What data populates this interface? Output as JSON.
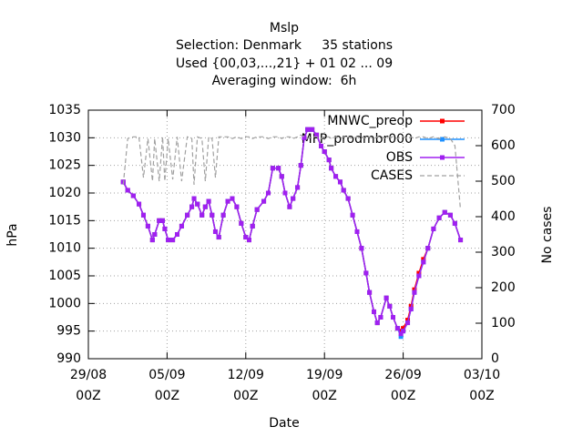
{
  "chart_data": {
    "type": "line",
    "title": "Mslp",
    "subtitle": [
      "Selection: Denmark     35 stations",
      "Used {00,03,...,21} + 01 02 ... 09",
      "Averaging window:  6h"
    ],
    "x_label": "Date",
    "y_label": "hPa",
    "y2_label": "No cases",
    "xlim": [
      0,
      35
    ],
    "xticks": [
      {
        "value": 0,
        "label": "29/08",
        "sublabel": "00Z"
      },
      {
        "value": 7,
        "label": "05/09",
        "sublabel": "00Z"
      },
      {
        "value": 14,
        "label": "12/09",
        "sublabel": "00Z"
      },
      {
        "value": 21,
        "label": "19/09",
        "sublabel": "00Z"
      },
      {
        "value": 28,
        "label": "26/09",
        "sublabel": "00Z"
      },
      {
        "value": 35,
        "label": "03/10",
        "sublabel": "00Z"
      }
    ],
    "ylim": [
      990,
      1035
    ],
    "yticks": [
      990,
      995,
      1000,
      1005,
      1010,
      1015,
      1020,
      1025,
      1030,
      1035
    ],
    "y2lim": [
      0,
      700
    ],
    "y2ticks": [
      0,
      100,
      200,
      300,
      400,
      500,
      600,
      700
    ],
    "grid": true,
    "legend": "top-right",
    "x": [
      3.1,
      3.5,
      4.0,
      4.5,
      4.9,
      5.3,
      5.7,
      5.9,
      6.3,
      6.6,
      6.8,
      7.1,
      7.5,
      7.9,
      8.3,
      8.8,
      9.2,
      9.4,
      9.7,
      10.1,
      10.4,
      10.7,
      11.0,
      11.3,
      11.6,
      12.0,
      12.4,
      12.8,
      13.2,
      13.6,
      14.0,
      14.3,
      14.6,
      15.0,
      15.6,
      16.0,
      16.4,
      16.9,
      17.2,
      17.5,
      17.9,
      18.2,
      18.6,
      18.9,
      19.2,
      19.5,
      19.9,
      20.3,
      20.7,
      21.0,
      21.4,
      21.6,
      22.0,
      22.4,
      22.7,
      23.1,
      23.5,
      23.9,
      24.3,
      24.7,
      25.0,
      25.4,
      25.7,
      26.0,
      26.5,
      26.8,
      27.1,
      27.5,
      27.8,
      28.0,
      28.4,
      28.7,
      29.0,
      29.4,
      29.8,
      30.2,
      30.7,
      31.2,
      31.7,
      32.2,
      32.6,
      33.1
    ],
    "series": [
      {
        "name": "MNWC_preop",
        "color": "#ff0000",
        "dashed": false,
        "values": [
          1022,
          1020.5,
          1019.5,
          1018,
          1016,
          1014,
          1011.5,
          1012.5,
          1015,
          1015,
          1013.5,
          1011.5,
          1011.5,
          1012.5,
          1014,
          1016,
          1017.5,
          1019,
          1018,
          1016,
          1017.5,
          1018.5,
          1016,
          1013,
          1012,
          1016,
          1018.5,
          1019,
          1017.5,
          1014.5,
          1012,
          1011.5,
          1014,
          1017,
          1018.5,
          1020,
          1024.5,
          1024.5,
          1023,
          1020,
          1017.5,
          1019,
          1021,
          1025,
          1030,
          1031.5,
          1031.5,
          1030.5,
          1028.5,
          1027.5,
          1026,
          1024.5,
          1023,
          1022,
          1020.5,
          1019,
          1016,
          1013,
          1010,
          1005.5,
          1002,
          998.5,
          996.5,
          997.5,
          1001,
          999.5,
          997.5,
          995.5,
          995,
          995.5,
          997,
          999.5,
          1002.5,
          1005.5,
          1008,
          1010,
          1013.5,
          1015.5,
          1016.5,
          1016,
          1014.5,
          1011.5
        ]
      },
      {
        "name": "MFP_prodmbr000",
        "color": "#1e90ff",
        "dashed": false,
        "values": [
          1022,
          1020.5,
          1019.5,
          1018,
          1016,
          1014,
          1011.5,
          1012.5,
          1015,
          1015,
          1013.5,
          1011.5,
          1011.5,
          1012.5,
          1014,
          1016,
          1017.5,
          1019,
          1018,
          1016,
          1017.5,
          1018.5,
          1016,
          1013,
          1012,
          1016,
          1018.5,
          1019,
          1017.5,
          1014.5,
          1012,
          1011.5,
          1014,
          1017,
          1018.5,
          1020,
          1024.5,
          1024.5,
          1023,
          1020,
          1017.5,
          1019,
          1021,
          1025,
          1030,
          1031.5,
          1031.5,
          1030.5,
          1028.5,
          1027.5,
          1026,
          1024.5,
          1023,
          1022,
          1020.5,
          1019,
          1016,
          1013,
          1010,
          1005.5,
          1002,
          998.5,
          996.5,
          997.5,
          1001,
          999.5,
          997.5,
          995.5,
          994,
          995,
          996.5,
          999,
          1002,
          1005,
          1007.5,
          1010,
          1013.5,
          1015.5,
          1016.5,
          1016,
          1014.5,
          1011.5
        ]
      },
      {
        "name": "OBS",
        "color": "#a020f0",
        "dashed": false,
        "values": [
          1022,
          1020.5,
          1019.5,
          1018,
          1016,
          1014,
          1011.5,
          1012.5,
          1015,
          1015,
          1013.5,
          1011.5,
          1011.5,
          1012.5,
          1014,
          1016,
          1017.5,
          1019,
          1018,
          1016,
          1017.5,
          1018.5,
          1016,
          1013,
          1012,
          1016,
          1018.5,
          1019,
          1017.5,
          1014.5,
          1012,
          1011.5,
          1014,
          1017,
          1018.5,
          1020,
          1024.5,
          1024.5,
          1023,
          1020,
          1017.5,
          1019,
          1021,
          1025,
          1030,
          1031.5,
          1031.5,
          1030.5,
          1028.5,
          1027.5,
          1026,
          1024.5,
          1023,
          1022,
          1020.5,
          1019,
          1016,
          1013,
          1010,
          1005.5,
          1002,
          998.5,
          996.5,
          997.5,
          1001,
          999.5,
          997.5,
          995.5,
          994.5,
          995,
          996.5,
          999,
          1002,
          1005,
          1007.5,
          1010,
          1013.5,
          1015.5,
          1016.5,
          1016,
          1014.5,
          1011.5
        ]
      },
      {
        "name": "CASES",
        "color": "#a0a0a0",
        "dashed": true,
        "axis": "y2",
        "values": [
          490,
          620,
          625,
          625,
          510,
          620,
          500,
          620,
          500,
          625,
          500,
          620,
          505,
          625,
          500,
          625,
          620,
          490,
          625,
          620,
          500,
          625,
          620,
          510,
          625,
          625,
          625,
          620,
          625,
          620,
          625,
          625,
          620,
          625,
          625,
          620,
          625,
          625,
          620,
          625,
          625,
          620,
          625,
          630,
          625,
          620,
          625,
          625,
          620,
          625,
          625,
          620,
          625,
          620,
          625,
          625,
          620,
          625,
          625,
          620,
          625,
          620,
          625,
          625,
          620,
          625,
          625,
          620,
          625,
          625,
          620,
          625,
          620,
          625,
          625,
          620,
          625,
          620,
          625,
          620,
          600,
          420
        ]
      }
    ]
  }
}
